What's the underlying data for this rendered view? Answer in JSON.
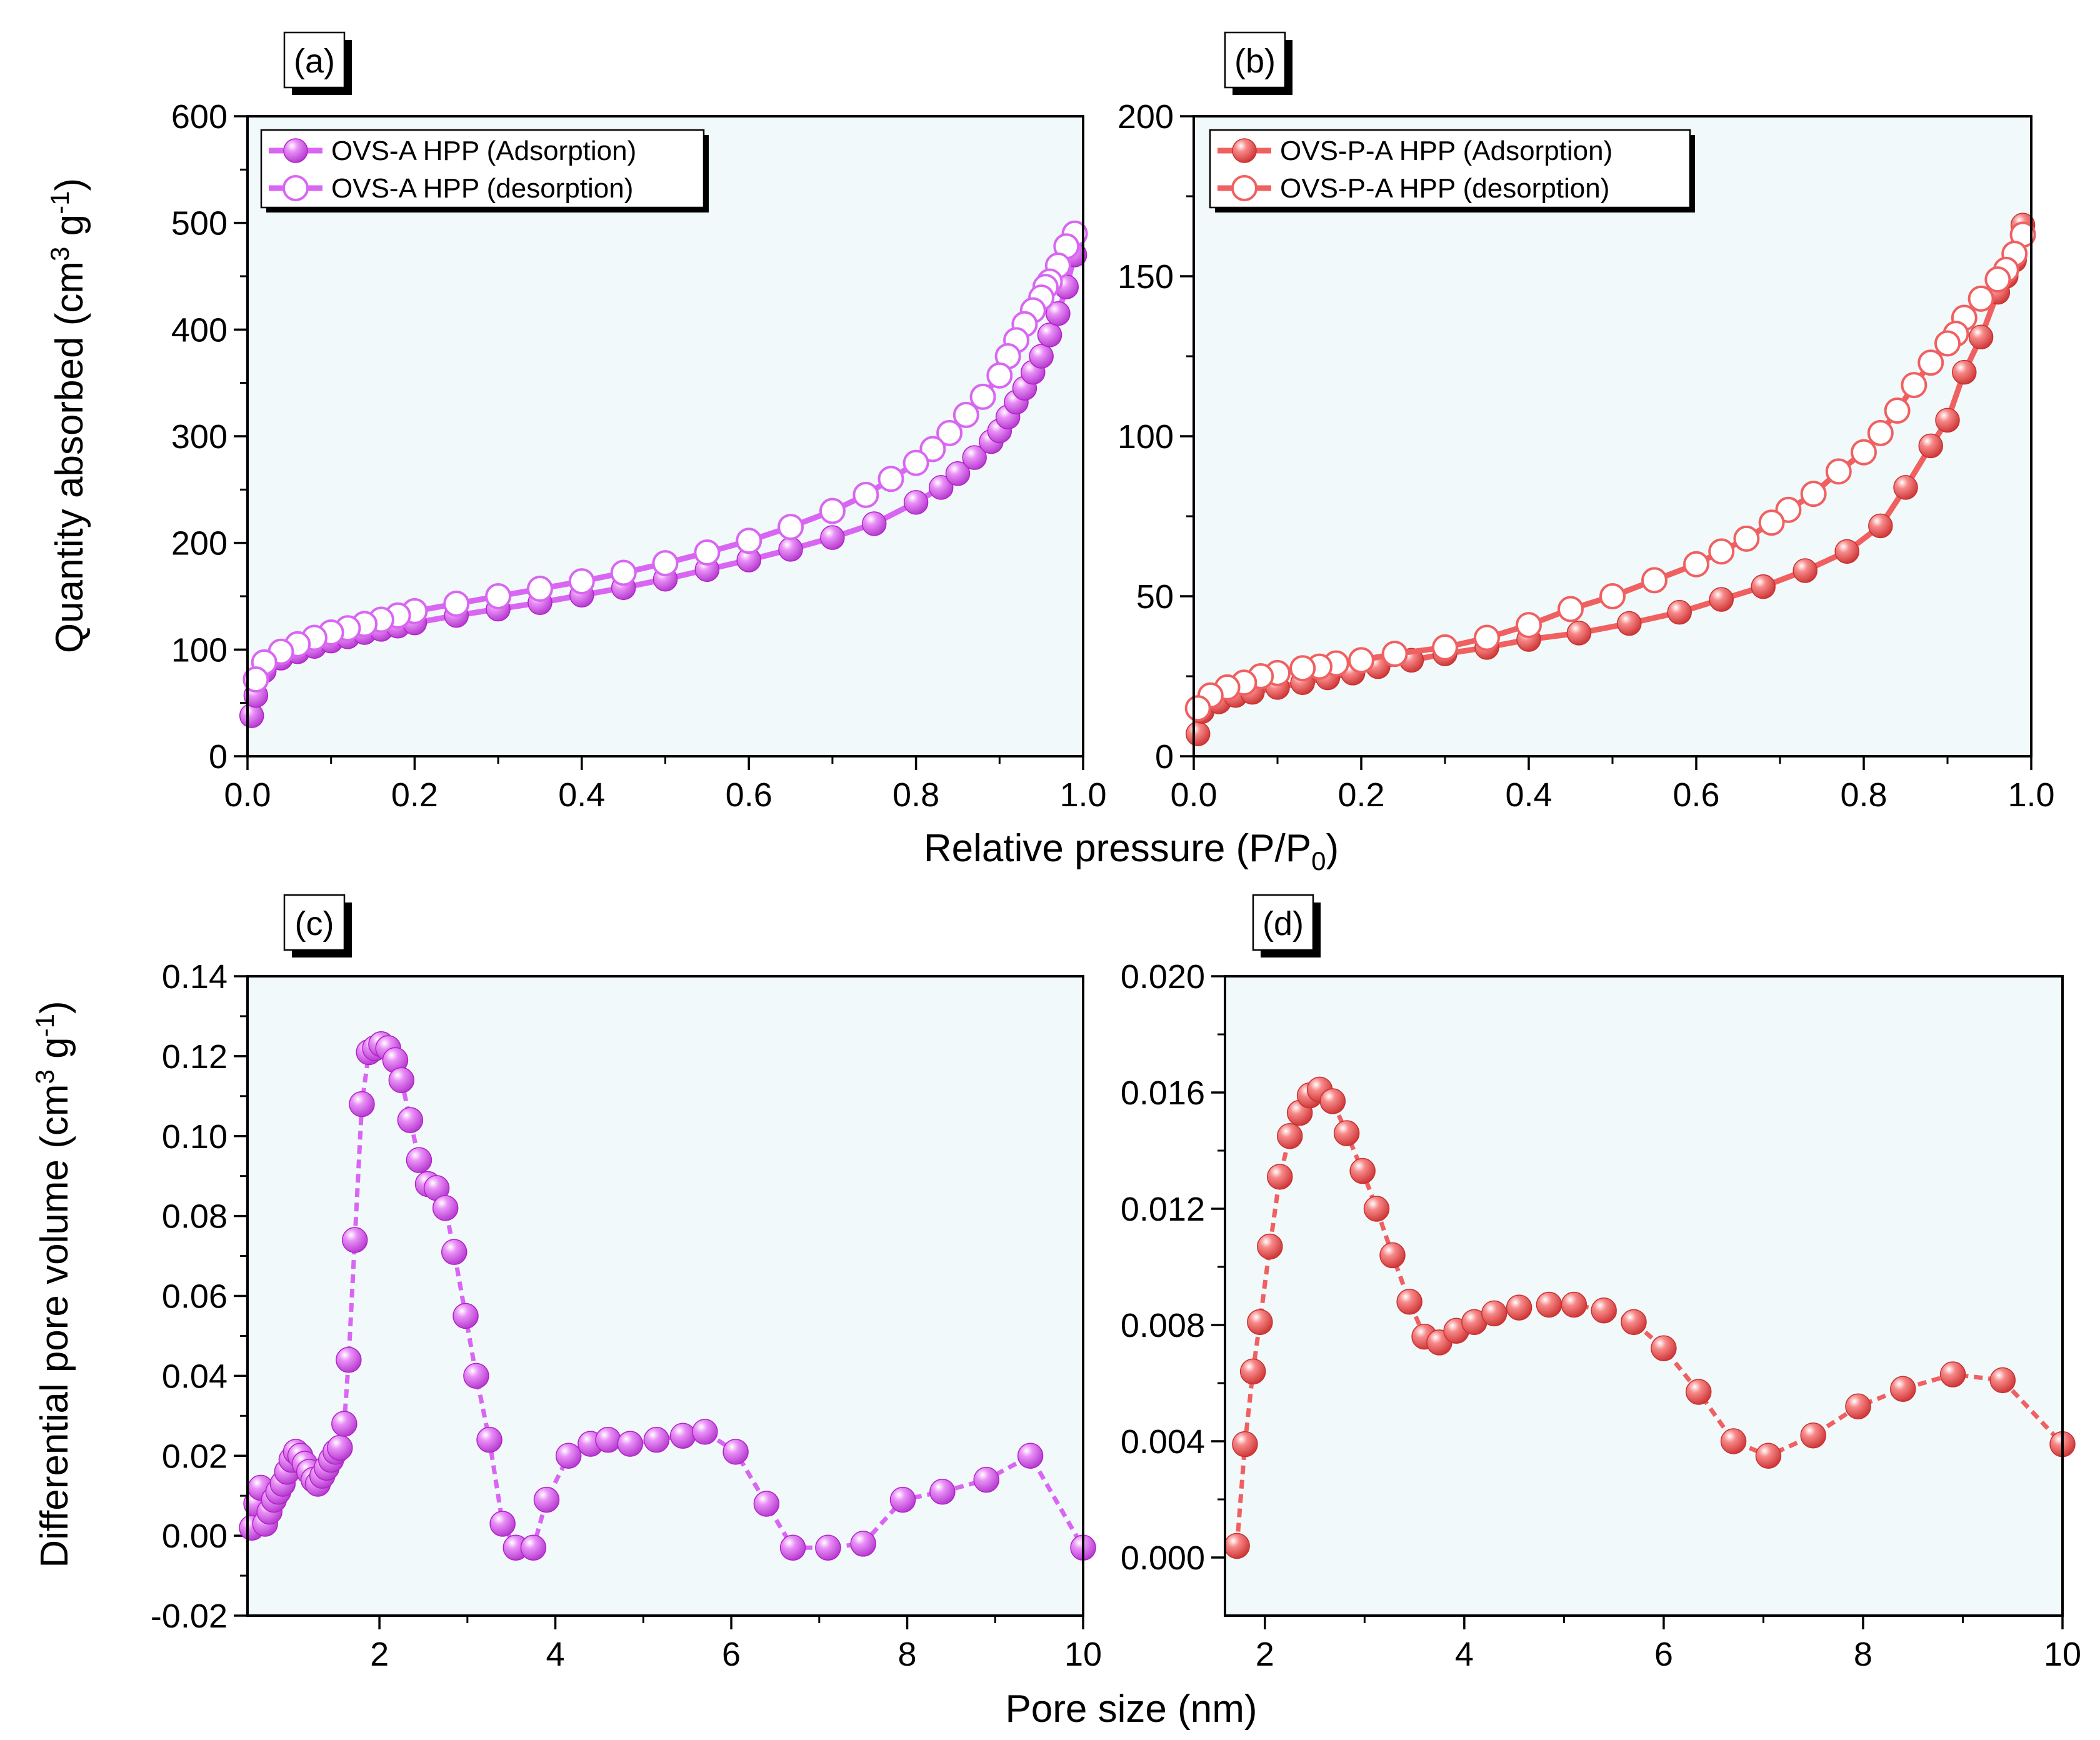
{
  "figure": {
    "shared_xlabel_top": "Relative pressure (P/P",
    "shared_xlabel_top_sub": "0",
    "shared_xlabel_top_end": ")",
    "shared_xlabel_bottom": "Pore size (nm)",
    "ylabel_top_main": "Quantity absorbed (cm",
    "ylabel_bottom_main": "Differential pore volume (cm",
    "ylabel_sup3": "3",
    "ylabel_mid": " g",
    "ylabel_supneg1": "-1",
    "ylabel_end": ")"
  },
  "colors": {
    "purple": "#d966f2",
    "purple_dark": "#b020c8",
    "red": "#f06060",
    "red_dark": "#c83030",
    "plot_bg": "#f1f9fb"
  },
  "chart_data": [
    {
      "panel": "(a)",
      "type": "scatter",
      "color": "purple",
      "xlim": [
        0,
        1.0
      ],
      "ylim": [
        0,
        600
      ],
      "xticks": [
        "0.0",
        "0.2",
        "0.4",
        "0.6",
        "0.8",
        "1.0"
      ],
      "xtick_values": [
        0,
        0.2,
        0.4,
        0.6,
        0.8,
        1.0
      ],
      "yticks": [
        "0",
        "100",
        "200",
        "300",
        "400",
        "500",
        "600"
      ],
      "ytick_values": [
        0,
        100,
        200,
        300,
        400,
        500,
        600
      ],
      "legend": [
        "OVS-A HPP (Adsorption)",
        "OVS-A HPP (desorption)"
      ],
      "series": [
        {
          "name": "OVS-A HPP (Adsorption)",
          "filled": true,
          "x": [
            0.005,
            0.01,
            0.02,
            0.04,
            0.06,
            0.08,
            0.1,
            0.12,
            0.14,
            0.16,
            0.18,
            0.2,
            0.25,
            0.3,
            0.35,
            0.4,
            0.45,
            0.5,
            0.55,
            0.6,
            0.65,
            0.7,
            0.75,
            0.8,
            0.83,
            0.85,
            0.87,
            0.89,
            0.9,
            0.91,
            0.92,
            0.93,
            0.94,
            0.95,
            0.96,
            0.97,
            0.98,
            0.99
          ],
          "y": [
            38,
            57,
            80,
            92,
            98,
            103,
            108,
            112,
            116,
            119,
            122,
            125,
            132,
            138,
            144,
            151,
            158,
            166,
            175,
            184,
            194,
            205,
            218,
            238,
            252,
            265,
            280,
            295,
            305,
            318,
            332,
            345,
            360,
            375,
            395,
            415,
            440,
            470
          ]
        },
        {
          "name": "OVS-A HPP (desorption)",
          "filled": false,
          "x": [
            0.99,
            0.98,
            0.97,
            0.96,
            0.955,
            0.95,
            0.94,
            0.93,
            0.92,
            0.91,
            0.9,
            0.88,
            0.86,
            0.84,
            0.82,
            0.8,
            0.77,
            0.74,
            0.7,
            0.65,
            0.6,
            0.55,
            0.5,
            0.45,
            0.4,
            0.35,
            0.3,
            0.25,
            0.2,
            0.18,
            0.16,
            0.14,
            0.12,
            0.1,
            0.08,
            0.06,
            0.04,
            0.02,
            0.01
          ],
          "y": [
            490,
            478,
            460,
            445,
            440,
            430,
            418,
            405,
            390,
            375,
            357,
            337,
            320,
            303,
            288,
            275,
            260,
            245,
            230,
            215,
            202,
            191,
            181,
            172,
            164,
            157,
            150,
            143,
            136,
            132,
            128,
            124,
            120,
            116,
            111,
            105,
            98,
            88,
            72
          ]
        }
      ]
    },
    {
      "panel": "(b)",
      "type": "scatter",
      "color": "red",
      "xlim": [
        0,
        1.0
      ],
      "ylim": [
        0,
        200
      ],
      "xticks": [
        "0.0",
        "0.2",
        "0.4",
        "0.6",
        "0.8",
        "1.0"
      ],
      "xtick_values": [
        0,
        0.2,
        0.4,
        0.6,
        0.8,
        1.0
      ],
      "yticks": [
        "0",
        "50",
        "100",
        "150",
        "200"
      ],
      "ytick_values": [
        0,
        50,
        100,
        150,
        200
      ],
      "legend": [
        "OVS-P-A HPP (Adsorption)",
        "OVS-P-A HPP (desorption)"
      ],
      "series": [
        {
          "name": "OVS-P-A HPP (Adsorption)",
          "filled": true,
          "x": [
            0.005,
            0.01,
            0.03,
            0.05,
            0.07,
            0.1,
            0.13,
            0.16,
            0.19,
            0.22,
            0.26,
            0.3,
            0.35,
            0.4,
            0.46,
            0.52,
            0.58,
            0.63,
            0.68,
            0.73,
            0.78,
            0.82,
            0.85,
            0.88,
            0.9,
            0.92,
            0.94,
            0.96,
            0.97,
            0.98,
            0.99
          ],
          "y": [
            7,
            14,
            17,
            19,
            20,
            21.5,
            23,
            24.5,
            26,
            28,
            30,
            32,
            34,
            36.5,
            38.5,
            41.5,
            45,
            49,
            53,
            58,
            64,
            72,
            84,
            97,
            105,
            120,
            131,
            145,
            150,
            155,
            166
          ]
        },
        {
          "name": "OVS-P-A HPP (desorption)",
          "filled": false,
          "x": [
            0.99,
            0.98,
            0.97,
            0.96,
            0.94,
            0.92,
            0.91,
            0.9,
            0.88,
            0.86,
            0.84,
            0.82,
            0.8,
            0.77,
            0.74,
            0.71,
            0.69,
            0.66,
            0.63,
            0.6,
            0.55,
            0.5,
            0.45,
            0.4,
            0.35,
            0.3,
            0.24,
            0.2,
            0.17,
            0.15,
            0.13,
            0.1,
            0.08,
            0.06,
            0.04,
            0.02,
            0.005
          ],
          "y": [
            163,
            157,
            152,
            149,
            143,
            137,
            132,
            129,
            123,
            116,
            108,
            101,
            95,
            89,
            82,
            77,
            73,
            68,
            64,
            60,
            55,
            50,
            46,
            41,
            37,
            34,
            32,
            30,
            29,
            28,
            27.5,
            26,
            25,
            23,
            21.5,
            19,
            15
          ]
        }
      ]
    },
    {
      "panel": "(c)",
      "type": "line",
      "color": "purple",
      "xlim": [
        0.5,
        10
      ],
      "ylim": [
        -0.02,
        0.14
      ],
      "xticks": [
        "2",
        "4",
        "6",
        "8",
        "10"
      ],
      "xtick_values": [
        2,
        4,
        6,
        8,
        10
      ],
      "yticks": [
        "-0.02",
        "0.00",
        "0.02",
        "0.04",
        "0.06",
        "0.08",
        "0.10",
        "0.12",
        "0.14"
      ],
      "ytick_values": [
        -0.02,
        0,
        0.02,
        0.04,
        0.06,
        0.08,
        0.1,
        0.12,
        0.14
      ],
      "series": [
        {
          "name": "OVS-A HPP",
          "x": [
            0.55,
            0.6,
            0.65,
            0.7,
            0.75,
            0.8,
            0.85,
            0.9,
            0.95,
            1.0,
            1.05,
            1.1,
            1.15,
            1.2,
            1.25,
            1.3,
            1.35,
            1.4,
            1.45,
            1.5,
            1.55,
            1.6,
            1.65,
            1.72,
            1.8,
            1.88,
            1.95,
            2.02,
            2.1,
            2.18,
            2.25,
            2.35,
            2.45,
            2.55,
            2.65,
            2.75,
            2.85,
            2.98,
            3.1,
            3.25,
            3.4,
            3.55,
            3.75,
            3.9,
            4.15,
            4.4,
            4.6,
            4.85,
            5.15,
            5.45,
            5.7,
            6.05,
            6.4,
            6.7,
            7.1,
            7.5,
            7.95,
            8.4,
            8.9,
            9.4,
            10.0
          ],
          "y": [
            0.002,
            0.008,
            0.012,
            0.003,
            0.006,
            0.009,
            0.011,
            0.013,
            0.016,
            0.019,
            0.021,
            0.02,
            0.018,
            0.016,
            0.014,
            0.013,
            0.015,
            0.017,
            0.019,
            0.021,
            0.022,
            0.028,
            0.044,
            0.074,
            0.108,
            0.121,
            0.122,
            0.123,
            0.122,
            0.119,
            0.114,
            0.104,
            0.094,
            0.088,
            0.087,
            0.082,
            0.071,
            0.055,
            0.04,
            0.024,
            0.003,
            -0.003,
            -0.003,
            0.009,
            0.02,
            0.023,
            0.024,
            0.023,
            0.024,
            0.025,
            0.026,
            0.021,
            0.008,
            -0.003,
            -0.003,
            -0.002,
            0.009,
            0.011,
            0.014,
            0.02,
            -0.003
          ]
        }
      ]
    },
    {
      "panel": "(d)",
      "type": "line",
      "color": "red",
      "xlim": [
        1.6,
        10
      ],
      "ylim": [
        -0.002,
        0.02
      ],
      "xticks": [
        "2",
        "4",
        "6",
        "8",
        "10"
      ],
      "xtick_values": [
        2,
        4,
        6,
        8,
        10
      ],
      "yticks": [
        "0.000",
        "0.004",
        "0.008",
        "0.012",
        "0.016",
        "0.020"
      ],
      "ytick_values": [
        0,
        0.004,
        0.008,
        0.012,
        0.016,
        0.02
      ],
      "series": [
        {
          "name": "OVS-P-A HPP",
          "x": [
            1.72,
            1.8,
            1.88,
            1.95,
            2.05,
            2.15,
            2.25,
            2.35,
            2.45,
            2.55,
            2.68,
            2.82,
            2.98,
            3.12,
            3.28,
            3.45,
            3.6,
            3.75,
            3.92,
            4.1,
            4.3,
            4.55,
            4.85,
            5.1,
            5.4,
            5.7,
            6.0,
            6.35,
            6.7,
            7.05,
            7.5,
            7.95,
            8.4,
            8.9,
            9.4,
            10.0
          ],
          "y": [
            0.0004,
            0.0039,
            0.0064,
            0.0081,
            0.0107,
            0.0131,
            0.0145,
            0.0153,
            0.0159,
            0.0161,
            0.0157,
            0.0146,
            0.0133,
            0.012,
            0.0104,
            0.0088,
            0.0076,
            0.0074,
            0.0078,
            0.0081,
            0.0084,
            0.0086,
            0.0087,
            0.0087,
            0.0085,
            0.0081,
            0.0072,
            0.0057,
            0.004,
            0.0035,
            0.0042,
            0.0052,
            0.0058,
            0.0063,
            0.0061,
            0.0039
          ]
        }
      ]
    }
  ]
}
